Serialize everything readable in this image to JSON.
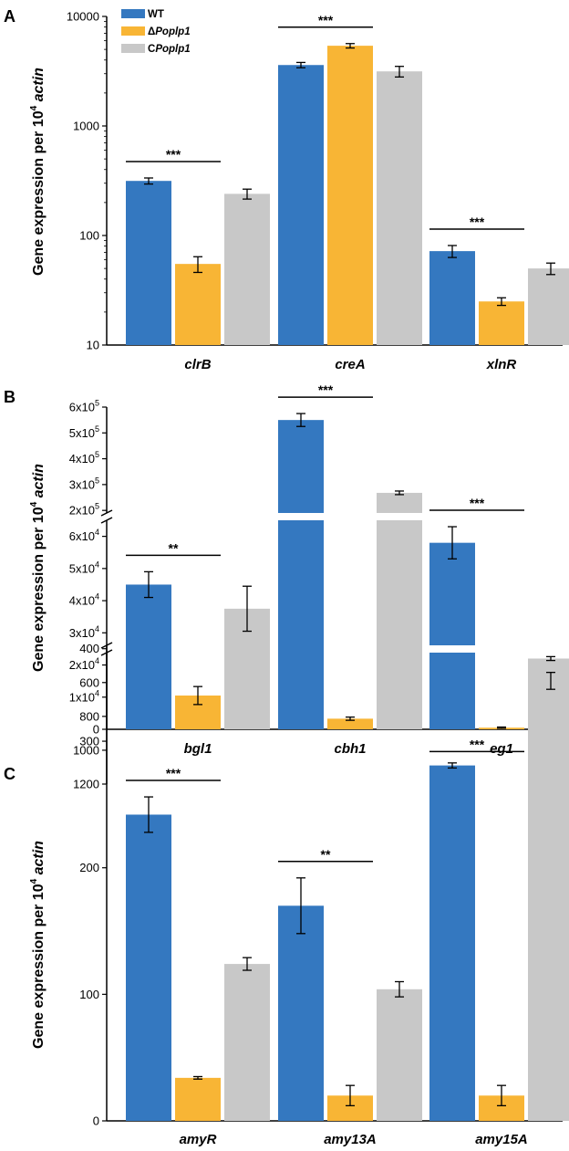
{
  "colors": {
    "wt": "#3478c0",
    "mutant": "#f8b535",
    "complement": "#c8c8c8",
    "axis": "#000000"
  },
  "legend": {
    "wt": "WT",
    "mutant_prefix": "Δ",
    "mutant_italic": "Poplp1",
    "complement_prefix": "C",
    "complement_italic": "Poplp1"
  },
  "chart_data": [
    {
      "panel": "A",
      "type": "bar",
      "scale": "log",
      "ylabel": "Gene expression per 10",
      "ylabel_sup": "4",
      "ylabel_italic": "actin",
      "ylim": [
        10,
        10000
      ],
      "yticks": [
        10,
        100,
        1000,
        10000
      ],
      "ytick_labels": [
        "10",
        "100",
        "1000",
        "10000"
      ],
      "categories": [
        "clrB",
        "creA",
        "xlnR"
      ],
      "series": [
        {
          "name": "WT",
          "values": [
            315,
            3600,
            72
          ],
          "errors": [
            20,
            200,
            9
          ]
        },
        {
          "name": "ΔPoplp1",
          "values": [
            55,
            5400,
            25
          ],
          "errors": [
            9,
            250,
            2
          ]
        },
        {
          "name": "CPoplp1",
          "values": [
            240,
            3150,
            50
          ],
          "errors": [
            25,
            350,
            6
          ]
        }
      ],
      "significance": [
        {
          "category": "clrB",
          "label": "***"
        },
        {
          "category": "creA",
          "label": "***"
        },
        {
          "category": "xlnR",
          "label": "***"
        }
      ]
    },
    {
      "panel": "B",
      "type": "bar",
      "scale": "broken-linear",
      "ylabel": "Gene expression per 10",
      "ylabel_sup": "4",
      "ylabel_italic": "actin",
      "lower_range": [
        0,
        65000
      ],
      "upper_range": [
        190000,
        600000
      ],
      "lower_ticks": [
        {
          "v": 0,
          "base": "0",
          "exp": ""
        },
        {
          "v": 10000,
          "base": "1x10",
          "exp": "4"
        },
        {
          "v": 20000,
          "base": "2x10",
          "exp": "4"
        },
        {
          "v": 30000,
          "base": "3x10",
          "exp": "4"
        },
        {
          "v": 40000,
          "base": "4x10",
          "exp": "4"
        },
        {
          "v": 50000,
          "base": "5x10",
          "exp": "4"
        },
        {
          "v": 60000,
          "base": "6x10",
          "exp": "4"
        }
      ],
      "upper_ticks": [
        {
          "v": 200000,
          "base": "2x10",
          "exp": "5"
        },
        {
          "v": 300000,
          "base": "3x10",
          "exp": "5"
        },
        {
          "v": 400000,
          "base": "4x10",
          "exp": "5"
        },
        {
          "v": 500000,
          "base": "5x10",
          "exp": "5"
        },
        {
          "v": 600000,
          "base": "6x10",
          "exp": "5"
        }
      ],
      "categories": [
        "bgl1",
        "cbh1",
        "eg1"
      ],
      "series": [
        {
          "name": "WT",
          "values": [
            45000,
            550000,
            58000
          ],
          "errors": [
            4000,
            25000,
            5000
          ]
        },
        {
          "name": "ΔPoplp1",
          "values": [
            10500,
            3300,
            500
          ],
          "errors": [
            2800,
            500,
            200
          ]
        },
        {
          "name": "CPoplp1",
          "values": [
            37500,
            268000,
            22000
          ],
          "errors": [
            7000,
            7000,
            600
          ]
        }
      ],
      "significance": [
        {
          "category": "bgl1",
          "label": "**"
        },
        {
          "category": "cbh1",
          "label": "***"
        },
        {
          "category": "eg1",
          "label": "***"
        }
      ]
    },
    {
      "panel": "C",
      "type": "bar",
      "scale": "broken-linear",
      "ylabel": "Gene expression per 10",
      "ylabel_sup": "4",
      "ylabel_italic": "actin",
      "lower_range": [
        0,
        370
      ],
      "upper_range": [
        380,
        1200
      ],
      "lower_ticks": [
        {
          "v": 0,
          "base": "0",
          "exp": ""
        },
        {
          "v": 100,
          "base": "100",
          "exp": ""
        },
        {
          "v": 200,
          "base": "200",
          "exp": ""
        },
        {
          "v": 300,
          "base": "300",
          "exp": ""
        }
      ],
      "upper_ticks": [
        {
          "v": 400,
          "base": "400",
          "exp": ""
        },
        {
          "v": 600,
          "base": "600",
          "exp": ""
        },
        {
          "v": 800,
          "base": "800",
          "exp": ""
        },
        {
          "v": 1000,
          "base": "1000",
          "exp": ""
        },
        {
          "v": 1200,
          "base": "1200",
          "exp": ""
        }
      ],
      "categories": [
        "amyR",
        "amy13A",
        "amy15A"
      ],
      "series": [
        {
          "name": "WT",
          "values": [
            242,
            170,
            1090
          ],
          "errors": [
            14,
            22,
            15
          ]
        },
        {
          "name": "ΔPoplp1",
          "values": [
            34,
            20,
            20
          ],
          "errors": [
            1,
            8,
            8
          ]
        },
        {
          "name": "CPoplp1",
          "values": [
            124,
            104,
            590
          ],
          "errors": [
            5,
            6,
            50
          ]
        }
      ],
      "significance": [
        {
          "category": "amyR",
          "label": "***"
        },
        {
          "category": "amy13A",
          "label": "**"
        },
        {
          "category": "amy15A",
          "label": "***"
        }
      ]
    }
  ]
}
